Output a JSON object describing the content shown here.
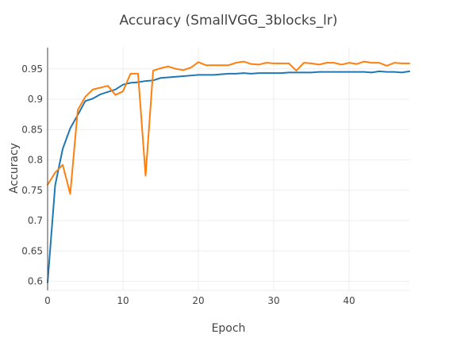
{
  "chart_data": {
    "type": "line",
    "title": "Accuracy (SmallVGG_3blocks_lr)",
    "xlabel": "Epoch",
    "ylabel": "Accuracy",
    "xlim": [
      0,
      48
    ],
    "ylim": [
      0.585,
      0.985
    ],
    "xticks": [
      0,
      10,
      20,
      30,
      40
    ],
    "yticks": [
      0.6,
      0.65,
      0.7,
      0.75,
      0.8,
      0.85,
      0.9,
      0.95
    ],
    "ytick_labels": [
      "0.6",
      "0.65",
      "0.7",
      "0.75",
      "0.8",
      "0.85",
      "0.9",
      "0.95"
    ],
    "grid": true,
    "x": [
      0,
      1,
      2,
      3,
      4,
      5,
      6,
      7,
      8,
      9,
      10,
      11,
      12,
      13,
      14,
      15,
      16,
      17,
      18,
      19,
      20,
      21,
      22,
      23,
      24,
      25,
      26,
      27,
      28,
      29,
      30,
      31,
      32,
      33,
      34,
      35,
      36,
      37,
      38,
      39,
      40,
      41,
      42,
      43,
      44,
      45,
      46,
      47,
      48
    ],
    "series": [
      {
        "color": "#1f77b4",
        "values": [
          0.598,
          0.758,
          0.818,
          0.852,
          0.874,
          0.897,
          0.901,
          0.908,
          0.912,
          0.916,
          0.924,
          0.927,
          0.928,
          0.93,
          0.931,
          0.935,
          0.936,
          0.937,
          0.938,
          0.939,
          0.94,
          0.94,
          0.94,
          0.941,
          0.942,
          0.942,
          0.943,
          0.942,
          0.943,
          0.943,
          0.943,
          0.943,
          0.944,
          0.944,
          0.944,
          0.944,
          0.945,
          0.945,
          0.945,
          0.945,
          0.945,
          0.945,
          0.945,
          0.944,
          0.946,
          0.945,
          0.945,
          0.944,
          0.946
        ]
      },
      {
        "color": "#ff7f0e",
        "values": [
          0.759,
          0.779,
          0.792,
          0.744,
          0.882,
          0.904,
          0.916,
          0.919,
          0.922,
          0.907,
          0.913,
          0.942,
          0.942,
          0.774,
          0.947,
          0.951,
          0.954,
          0.95,
          0.948,
          0.952,
          0.961,
          0.956,
          0.956,
          0.956,
          0.956,
          0.96,
          0.962,
          0.958,
          0.957,
          0.96,
          0.959,
          0.959,
          0.959,
          0.947,
          0.96,
          0.959,
          0.957,
          0.96,
          0.96,
          0.957,
          0.96,
          0.958,
          0.962,
          0.96,
          0.96,
          0.955,
          0.96,
          0.959,
          0.959
        ]
      }
    ]
  }
}
